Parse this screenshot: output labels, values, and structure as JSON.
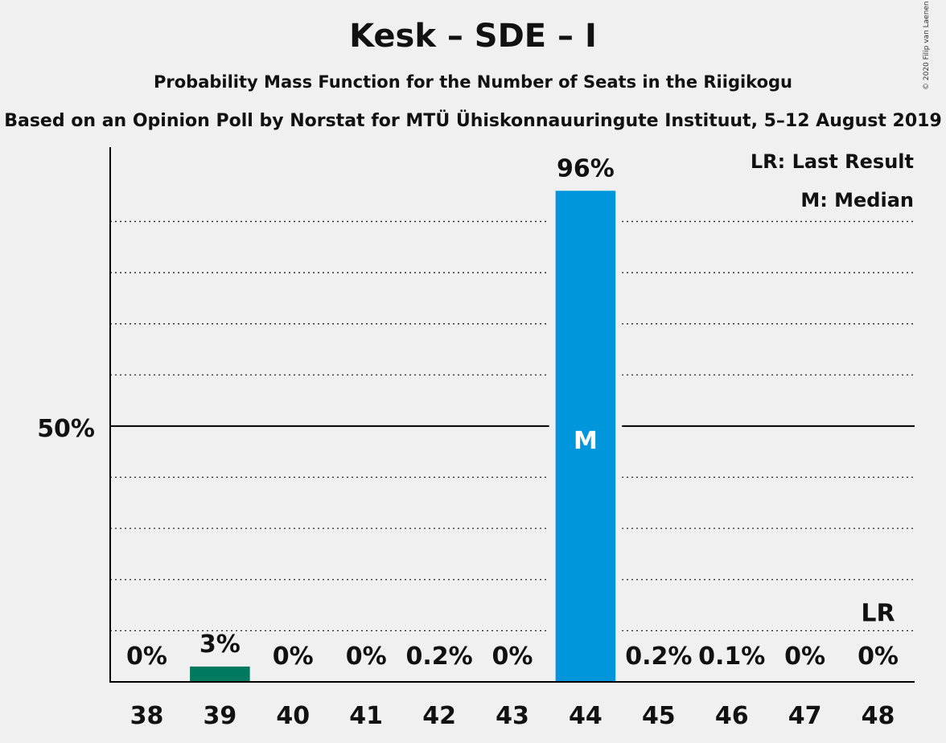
{
  "chart_data": {
    "type": "bar",
    "title": "Kesk – SDE – I",
    "subtitle": "Probability Mass Function for the Number of Seats in the Riigikogu",
    "source": "Based on an Opinion Poll by Norstat for MTÜ Ühiskonnauuringute Instituut, 5–12 August 2019",
    "copyright": "© 2020 Filip van Laenen",
    "categories": [
      "38",
      "39",
      "40",
      "41",
      "42",
      "43",
      "44",
      "45",
      "46",
      "47",
      "48"
    ],
    "values": [
      0,
      3,
      0,
      0,
      0.2,
      0,
      96,
      0.2,
      0.1,
      0,
      0
    ],
    "value_labels": [
      "0%",
      "3%",
      "0%",
      "0%",
      "0.2%",
      "0%",
      "96%",
      "0.2%",
      "0.1%",
      "0%",
      "0%"
    ],
    "ylim": [
      0,
      105
    ],
    "ytick_label": "50%",
    "ytick_value": 50,
    "gridlines": [
      10,
      20,
      30,
      40,
      60,
      70,
      80,
      90
    ],
    "median_category": "44",
    "median_label": "M",
    "last_result_category": "48",
    "last_result_label": "LR",
    "legend": [
      "LR: Last Result",
      "M: Median"
    ],
    "legend_position": "top-right",
    "colors": {
      "median_bar": "#0096db",
      "other_bar": "#007a5e",
      "background": "#f0f0f0",
      "axis": "#000000"
    }
  }
}
